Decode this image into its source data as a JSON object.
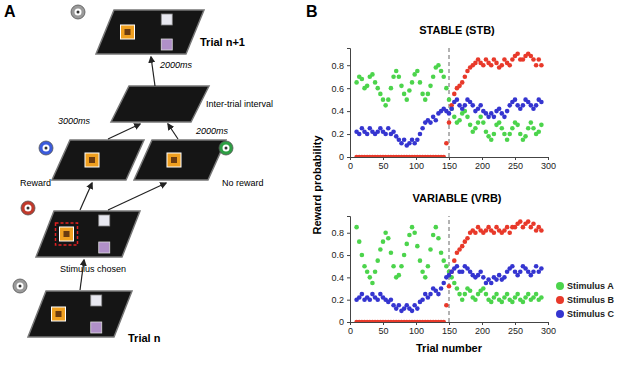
{
  "panel_labels": [
    "A",
    "B"
  ],
  "diagram": {
    "trial_next": "Trial n+1",
    "iti_duration": "2000ms",
    "iti": "Inter-trial interval",
    "reward_delay": "3000ms",
    "no_reward_delay": "2000ms",
    "reward": "Reward",
    "no_reward": "No reward",
    "stimulus_chosen": "Stimulus chosen",
    "trial_n": "Trial n"
  },
  "chart_data": [
    {
      "type": "scatter",
      "title": "STABLE (STB)",
      "y_label": "Reward probability",
      "marker": "circle",
      "xlim": [
        0,
        300
      ],
      "xticks": [
        0,
        50,
        100,
        150,
        200,
        250,
        300
      ],
      "ylim": [
        0,
        0.95
      ],
      "yticks": [
        0,
        0.2,
        0.4,
        0.6,
        0.8
      ],
      "vline": 150,
      "x": [
        10,
        14,
        18,
        22,
        26,
        30,
        34,
        38,
        42,
        46,
        50,
        54,
        58,
        62,
        66,
        70,
        74,
        78,
        82,
        86,
        90,
        94,
        98,
        102,
        106,
        110,
        114,
        118,
        122,
        126,
        130,
        134,
        138,
        142,
        146,
        150,
        154,
        158,
        162,
        166,
        170,
        174,
        178,
        182,
        186,
        190,
        194,
        198,
        202,
        206,
        210,
        214,
        218,
        222,
        226,
        230,
        234,
        238,
        242,
        246,
        250,
        254,
        258,
        262,
        266,
        270,
        274,
        278,
        282,
        286,
        290
      ],
      "series": [
        {
          "color": "#4cd44c",
          "values": [
            0.65,
            0.7,
            0.68,
            0.6,
            0.62,
            0.7,
            0.72,
            0.65,
            0.6,
            0.55,
            0.5,
            0.45,
            0.5,
            0.6,
            0.7,
            0.75,
            0.7,
            0.62,
            0.55,
            0.5,
            0.58,
            0.65,
            0.72,
            0.75,
            0.65,
            0.55,
            0.5,
            0.55,
            0.62,
            0.7,
            0.78,
            0.8,
            0.75,
            0.7,
            0.6,
            0.5,
            0.42,
            0.35,
            0.3,
            0.32,
            0.38,
            0.4,
            0.35,
            0.28,
            0.22,
            0.25,
            0.3,
            0.35,
            0.3,
            0.22,
            0.18,
            0.15,
            0.2,
            0.28,
            0.3,
            0.25,
            0.2,
            0.15,
            0.2,
            0.25,
            0.3,
            0.28,
            0.2,
            0.15,
            0.18,
            0.25,
            0.3,
            0.25,
            0.2,
            0.22,
            0.28
          ]
        },
        {
          "color": "#e8392a",
          "values": [
            0,
            0,
            0,
            0,
            0,
            0,
            0,
            0,
            0,
            0,
            0,
            0,
            0,
            0,
            0,
            0,
            0,
            0,
            0,
            0,
            0,
            0,
            0,
            0,
            0,
            0,
            0,
            0,
            0,
            0,
            0,
            0,
            0,
            0,
            0.12,
            0.3,
            0.45,
            0.55,
            0.6,
            0.62,
            0.65,
            0.7,
            0.75,
            0.78,
            0.8,
            0.82,
            0.85,
            0.82,
            0.8,
            0.85,
            0.82,
            0.8,
            0.85,
            0.82,
            0.78,
            0.8,
            0.85,
            0.82,
            0.8,
            0.85,
            0.88,
            0.9,
            0.85,
            0.85,
            0.88,
            0.9,
            0.88,
            0.85,
            0.8,
            0.85,
            0.8
          ]
        },
        {
          "color": "#3535d0",
          "values": [
            0.22,
            0.2,
            0.25,
            0.22,
            0.2,
            0.25,
            0.22,
            0.2,
            0.22,
            0.25,
            0.22,
            0.2,
            0.25,
            0.2,
            0.22,
            0.18,
            0.15,
            0.12,
            0.15,
            0.1,
            0.12,
            0.15,
            0.12,
            0.15,
            0.2,
            0.25,
            0.3,
            0.32,
            0.3,
            0.35,
            0.32,
            0.38,
            0.4,
            0.42,
            0.4,
            0.38,
            0.42,
            0.48,
            0.5,
            0.45,
            0.42,
            0.45,
            0.5,
            0.48,
            0.45,
            0.4,
            0.42,
            0.45,
            0.4,
            0.38,
            0.35,
            0.38,
            0.35,
            0.4,
            0.42,
            0.38,
            0.35,
            0.4,
            0.45,
            0.48,
            0.5,
            0.45,
            0.42,
            0.45,
            0.5,
            0.48,
            0.45,
            0.42,
            0.45,
            0.5,
            0.48
          ]
        }
      ]
    },
    {
      "type": "scatter",
      "title": "VARIABLE (VRB)",
      "x_label": "Trial number",
      "marker": "circle",
      "legend": "right",
      "xlim": [
        0,
        300
      ],
      "xticks": [
        0,
        50,
        100,
        150,
        200,
        250,
        300
      ],
      "ylim": [
        0,
        0.95
      ],
      "yticks": [
        0,
        0.2,
        0.4,
        0.6,
        0.8
      ],
      "vline": 150,
      "x": [
        10,
        14,
        18,
        22,
        26,
        30,
        34,
        38,
        42,
        46,
        50,
        54,
        58,
        62,
        66,
        70,
        74,
        78,
        82,
        86,
        90,
        94,
        98,
        102,
        106,
        110,
        114,
        118,
        122,
        126,
        130,
        134,
        138,
        142,
        146,
        150,
        154,
        158,
        162,
        166,
        170,
        174,
        178,
        182,
        186,
        190,
        194,
        198,
        202,
        206,
        210,
        214,
        218,
        222,
        226,
        230,
        234,
        238,
        242,
        246,
        250,
        254,
        258,
        262,
        266,
        270,
        274,
        278,
        282,
        286,
        290
      ],
      "series": [
        {
          "name": "Stimulus A",
          "color": "#4cd44c",
          "values": [
            0.85,
            0.72,
            0.6,
            0.5,
            0.45,
            0.4,
            0.35,
            0.45,
            0.55,
            0.65,
            0.72,
            0.8,
            0.75,
            0.62,
            0.5,
            0.4,
            0.42,
            0.5,
            0.6,
            0.7,
            0.78,
            0.85,
            0.8,
            0.68,
            0.55,
            0.45,
            0.4,
            0.5,
            0.65,
            0.78,
            0.85,
            0.75,
            0.62,
            0.55,
            0.5,
            0.45,
            0.4,
            0.35,
            0.3,
            0.25,
            0.2,
            0.25,
            0.3,
            0.28,
            0.22,
            0.2,
            0.25,
            0.28,
            0.3,
            0.25,
            0.2,
            0.18,
            0.22,
            0.25,
            0.2,
            0.18,
            0.22,
            0.25,
            0.2,
            0.18,
            0.22,
            0.25,
            0.2,
            0.18,
            0.22,
            0.25,
            0.2,
            0.22,
            0.25,
            0.2,
            0.22
          ]
        },
        {
          "name": "Stimulus B",
          "color": "#e8392a",
          "values": [
            0,
            0,
            0,
            0,
            0,
            0,
            0,
            0,
            0,
            0,
            0,
            0,
            0,
            0,
            0,
            0,
            0,
            0,
            0,
            0,
            0,
            0,
            0,
            0,
            0,
            0,
            0,
            0,
            0,
            0,
            0,
            0,
            0,
            0,
            0.15,
            0.32,
            0.45,
            0.55,
            0.62,
            0.65,
            0.68,
            0.72,
            0.75,
            0.8,
            0.82,
            0.8,
            0.85,
            0.82,
            0.8,
            0.82,
            0.85,
            0.82,
            0.8,
            0.85,
            0.82,
            0.8,
            0.82,
            0.85,
            0.8,
            0.85,
            0.85,
            0.88,
            0.9,
            0.85,
            0.88,
            0.9,
            0.85,
            0.88,
            0.82,
            0.85,
            0.82
          ]
        },
        {
          "name": "Stimulus C",
          "color": "#3535d0",
          "values": [
            0.2,
            0.22,
            0.25,
            0.2,
            0.22,
            0.2,
            0.25,
            0.22,
            0.2,
            0.25,
            0.22,
            0.2,
            0.18,
            0.2,
            0.15,
            0.12,
            0.15,
            0.1,
            0.12,
            0.15,
            0.12,
            0.1,
            0.15,
            0.12,
            0.18,
            0.2,
            0.25,
            0.22,
            0.25,
            0.3,
            0.28,
            0.25,
            0.3,
            0.35,
            0.4,
            0.42,
            0.45,
            0.48,
            0.5,
            0.45,
            0.45,
            0.5,
            0.48,
            0.45,
            0.42,
            0.4,
            0.42,
            0.45,
            0.4,
            0.35,
            0.38,
            0.35,
            0.4,
            0.38,
            0.42,
            0.38,
            0.4,
            0.45,
            0.48,
            0.5,
            0.45,
            0.42,
            0.45,
            0.5,
            0.48,
            0.45,
            0.42,
            0.45,
            0.5,
            0.45,
            0.48
          ]
        }
      ]
    }
  ]
}
